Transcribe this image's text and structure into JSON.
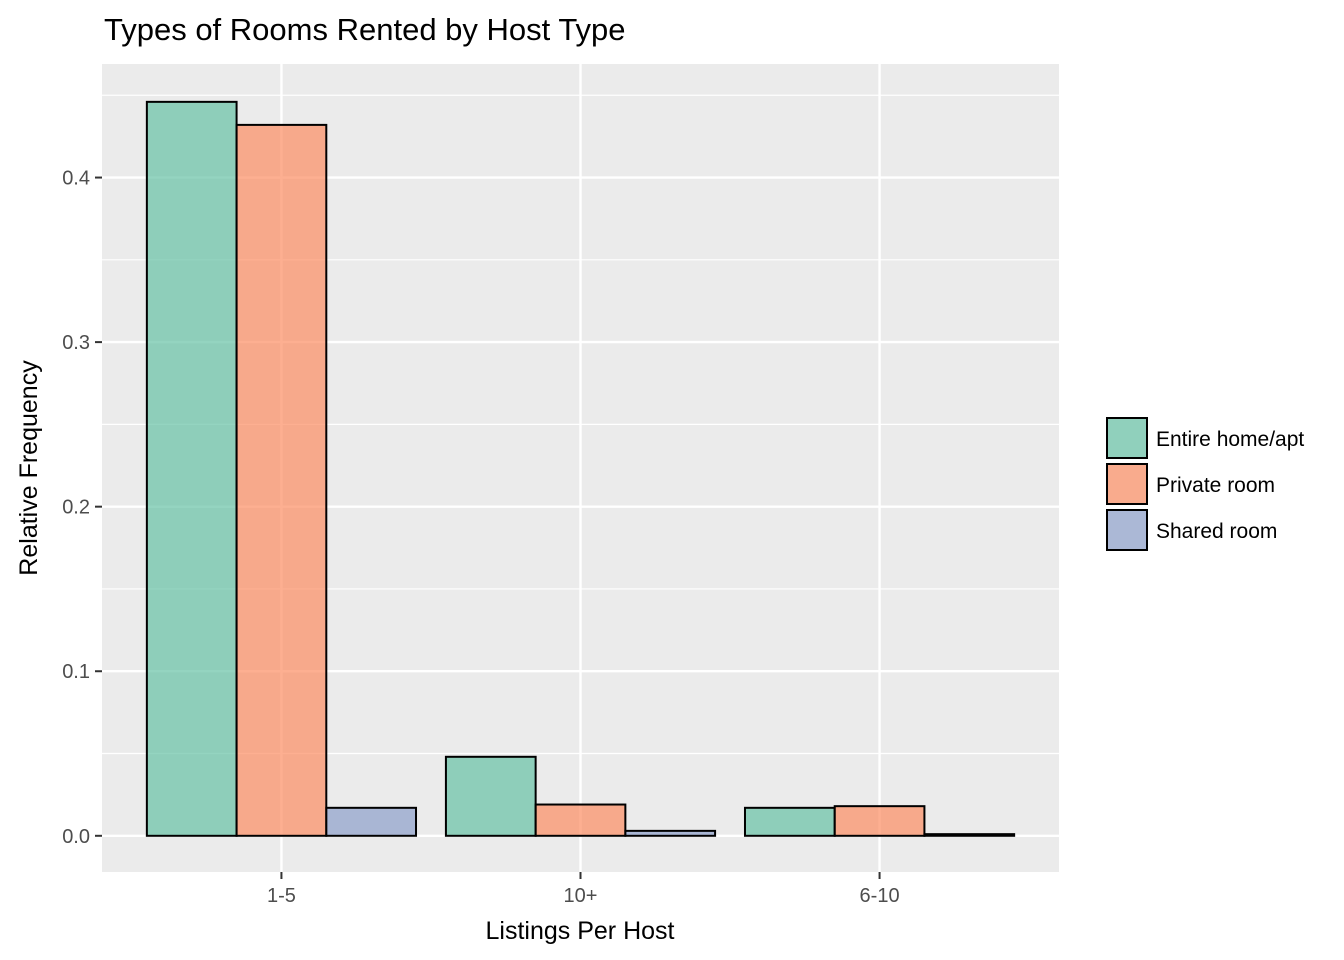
{
  "chart_data": {
    "type": "bar",
    "title": "Types of Rooms Rented by Host Type",
    "xlabel": "Listings Per Host",
    "ylabel": "Relative Frequency",
    "categories": [
      "1-5",
      "10+",
      "6-10"
    ],
    "series": [
      {
        "name": "Entire home/apt",
        "color": "#66c2a5",
        "values": [
          0.446,
          0.048,
          0.017
        ]
      },
      {
        "name": "Private room",
        "color": "#fc8d62",
        "values": [
          0.432,
          0.019,
          0.018
        ]
      },
      {
        "name": "Shared room",
        "color": "#8da0cb",
        "values": [
          0.017,
          0.003,
          0.001
        ]
      }
    ],
    "ylim": [
      -0.022,
      0.469
    ],
    "yticks": [
      0.0,
      0.1,
      0.2,
      0.3,
      0.4
    ],
    "ytick_labels": [
      "0.0",
      "0.1",
      "0.2",
      "0.3",
      "0.4"
    ],
    "grid": true,
    "legend_position": "right",
    "panel_background": "#ebebeb",
    "grid_color": "#ffffff",
    "bar_outline": "#000000"
  }
}
